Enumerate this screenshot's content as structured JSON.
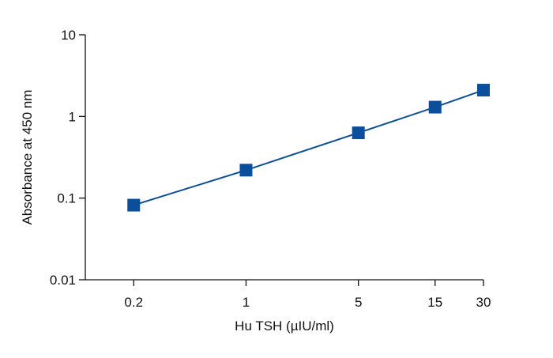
{
  "chart_data": {
    "type": "line",
    "x_label": "Hu TSH (µIU/ml)",
    "y_label": "Absorbance at 450 nm",
    "x": [
      0.2,
      1,
      5,
      15,
      30
    ],
    "series": [
      {
        "color": "#0b4f9c",
        "values": [
          0.082,
          0.22,
          0.63,
          1.3,
          2.1
        ]
      }
    ],
    "x_log": true,
    "y_log": true,
    "xlim": [
      0.1,
      30
    ],
    "ylim": [
      0.01,
      10
    ],
    "xticks": [
      0.2,
      1,
      5,
      15,
      30
    ],
    "yticks": [
      10,
      1,
      0.1,
      0.01
    ],
    "grid": false
  }
}
